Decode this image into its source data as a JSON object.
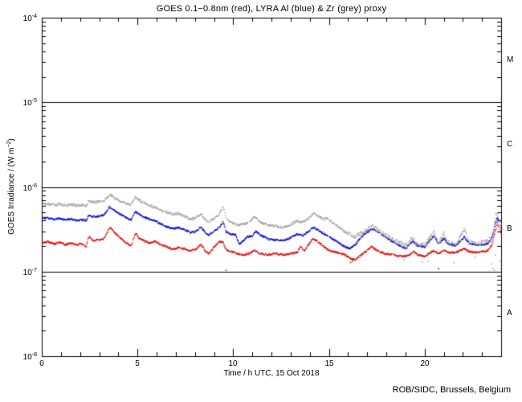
{
  "footer": "ROB/SIDC, Brussels, Belgium",
  "colors": {
    "red": "#e00000",
    "blue": "#0000dd",
    "grey": "#9e9e9e",
    "axis": "#000000",
    "background": "#ffffff"
  },
  "chart_data": {
    "type": "scatter",
    "title": "GOES 0.1−0.8nm (red), LYRA Al (blue) & Zr (grey) proxy",
    "xlabel": "Time / h UTC, 15 Oct 2018",
    "ylabel": "GOES Irradiance / (W m⁻²)",
    "ylabel_parts": {
      "pre": "GOES Irradiance / (W m",
      "exp": "−2",
      "post": ")"
    },
    "x_range": [
      0,
      24
    ],
    "x_minor_step": 1,
    "y_scale": "log",
    "y_range_log10": [
      -8,
      -4
    ],
    "y_tick_base": "10",
    "x_ticks": [
      {
        "t": 0,
        "label": "0"
      },
      {
        "t": 5,
        "label": "5"
      },
      {
        "t": 10,
        "label": "10"
      },
      {
        "t": 15,
        "label": "15"
      },
      {
        "t": 20,
        "label": "20"
      }
    ],
    "y_ticks": [
      {
        "v": 0.0001,
        "exp": "-4"
      },
      {
        "v": 1e-05,
        "exp": "-5"
      },
      {
        "v": 1e-06,
        "exp": "-6"
      },
      {
        "v": 1e-07,
        "exp": "-7"
      },
      {
        "v": 1e-08,
        "exp": "-8"
      }
    ],
    "class_boundaries": [
      1e-05,
      1e-06,
      1e-07
    ],
    "flare_classes": [
      {
        "label": "M",
        "center_exp": -4.5
      },
      {
        "label": "C",
        "center_exp": -5.5
      },
      {
        "label": "B",
        "center_exp": -6.5
      },
      {
        "label": "A",
        "center_exp": -7.5
      }
    ],
    "grid": false,
    "legend_position": "in-title",
    "value_scale": 1e-07,
    "value_unit": "W m-2 (points stored in units of 1e-7)",
    "series": [
      {
        "name": "GOES 0.1-0.8nm",
        "color_key": "red",
        "points": [
          [
            0,
            2.2
          ],
          [
            0.3,
            2.3
          ],
          [
            0.6,
            2.15
          ],
          [
            0.9,
            2.25
          ],
          [
            1.2,
            2.1
          ],
          [
            1.5,
            2.2
          ],
          [
            1.8,
            2.1
          ],
          [
            2.1,
            2.15
          ],
          [
            2.3,
            2.0
          ],
          [
            2.4,
            2.55
          ],
          [
            2.5,
            2.65
          ],
          [
            2.6,
            2.35
          ],
          [
            2.9,
            2.4
          ],
          [
            3.2,
            2.45
          ],
          [
            3.35,
            2.8
          ],
          [
            3.5,
            3.35
          ],
          [
            3.65,
            3.2
          ],
          [
            3.8,
            2.9
          ],
          [
            4.1,
            2.5
          ],
          [
            4.4,
            2.2
          ],
          [
            4.65,
            2.05
          ],
          [
            4.8,
            2.6
          ],
          [
            4.9,
            2.9
          ],
          [
            5.05,
            2.5
          ],
          [
            5.3,
            2.35
          ],
          [
            5.6,
            2.2
          ],
          [
            5.9,
            2.3
          ],
          [
            6.2,
            2.1
          ],
          [
            6.5,
            2.0
          ],
          [
            6.8,
            1.85
          ],
          [
            7.1,
            1.95
          ],
          [
            7.4,
            1.9
          ],
          [
            7.7,
            1.8
          ],
          [
            8.0,
            1.85
          ],
          [
            8.3,
            2.15
          ],
          [
            8.5,
            1.8
          ],
          [
            8.7,
            1.65
          ],
          [
            9.0,
            2.0
          ],
          [
            9.25,
            2.3
          ],
          [
            9.45,
            2.25
          ],
          [
            9.6,
            1.85
          ],
          [
            9.9,
            1.75
          ],
          [
            10.2,
            1.65
          ],
          [
            10.5,
            1.6
          ],
          [
            10.8,
            1.65
          ],
          [
            11.1,
            1.8
          ],
          [
            11.4,
            1.65
          ],
          [
            11.8,
            1.6
          ],
          [
            12.2,
            1.65
          ],
          [
            12.6,
            1.6
          ],
          [
            13.0,
            1.65
          ],
          [
            13.3,
            1.7
          ],
          [
            13.5,
            2.0
          ],
          [
            13.7,
            1.8
          ],
          [
            13.9,
            2.1
          ],
          [
            14.15,
            2.5
          ],
          [
            14.4,
            2.3
          ],
          [
            14.7,
            2.0
          ],
          [
            15.0,
            1.8
          ],
          [
            15.4,
            1.7
          ],
          [
            15.8,
            1.6
          ],
          [
            16.1,
            1.45
          ],
          [
            16.35,
            1.4
          ],
          [
            16.6,
            1.55
          ],
          [
            16.9,
            1.75
          ],
          [
            17.2,
            2.0
          ],
          [
            17.5,
            1.8
          ],
          [
            17.9,
            1.65
          ],
          [
            18.3,
            1.6
          ],
          [
            18.7,
            1.55
          ],
          [
            19.1,
            1.55
          ],
          [
            19.4,
            1.75
          ],
          [
            19.6,
            1.6
          ],
          [
            20.0,
            1.55
          ],
          [
            20.45,
            1.8
          ],
          [
            20.7,
            1.65
          ],
          [
            21.0,
            1.8
          ],
          [
            21.2,
            1.7
          ],
          [
            21.6,
            1.7
          ],
          [
            22.05,
            1.9
          ],
          [
            22.3,
            1.75
          ],
          [
            22.7,
            1.7
          ],
          [
            23.0,
            1.75
          ],
          [
            23.3,
            1.8
          ],
          [
            23.5,
            2.1
          ],
          [
            23.65,
            3.0
          ],
          [
            23.78,
            3.75
          ],
          [
            23.9,
            3.2
          ],
          [
            24,
            2.7
          ]
        ],
        "outliers": [
          [
            9.6,
            1.05
          ],
          [
            16.1,
            1.3
          ],
          [
            16.2,
            1.35
          ]
        ]
      },
      {
        "name": "LYRA Al proxy",
        "color_key": "blue",
        "points": [
          [
            0,
            4.3
          ],
          [
            0.3,
            4.35
          ],
          [
            0.6,
            4.2
          ],
          [
            0.9,
            4.3
          ],
          [
            1.2,
            4.15
          ],
          [
            1.5,
            4.25
          ],
          [
            1.8,
            4.1
          ],
          [
            2.1,
            4.15
          ],
          [
            2.3,
            4.05
          ],
          [
            2.4,
            4.6
          ],
          [
            2.6,
            4.5
          ],
          [
            2.9,
            4.55
          ],
          [
            3.2,
            4.7
          ],
          [
            3.35,
            5.1
          ],
          [
            3.5,
            5.9
          ],
          [
            3.65,
            5.7
          ],
          [
            3.8,
            5.3
          ],
          [
            4.1,
            4.8
          ],
          [
            4.4,
            4.35
          ],
          [
            4.65,
            4.15
          ],
          [
            4.85,
            5.2
          ],
          [
            5.05,
            4.85
          ],
          [
            5.3,
            4.5
          ],
          [
            5.6,
            4.2
          ],
          [
            5.9,
            4.0
          ],
          [
            6.2,
            3.7
          ],
          [
            6.5,
            3.45
          ],
          [
            6.8,
            3.25
          ],
          [
            7.1,
            3.35
          ],
          [
            7.4,
            3.2
          ],
          [
            7.7,
            2.95
          ],
          [
            8.0,
            3.0
          ],
          [
            8.3,
            3.4
          ],
          [
            8.5,
            2.95
          ],
          [
            8.7,
            2.75
          ],
          [
            9.0,
            3.05
          ],
          [
            9.25,
            3.35
          ],
          [
            9.45,
            3.95
          ],
          [
            9.6,
            3.0
          ],
          [
            9.9,
            2.8
          ],
          [
            10.1,
            2.75
          ],
          [
            10.3,
            2.15
          ],
          [
            10.45,
            2.3
          ],
          [
            10.7,
            2.6
          ],
          [
            11.0,
            2.7
          ],
          [
            11.15,
            3.05
          ],
          [
            11.4,
            2.75
          ],
          [
            11.8,
            2.45
          ],
          [
            12.2,
            2.4
          ],
          [
            12.6,
            2.35
          ],
          [
            13.0,
            2.55
          ],
          [
            13.3,
            2.8
          ],
          [
            13.6,
            2.7
          ],
          [
            13.9,
            3.0
          ],
          [
            14.15,
            3.4
          ],
          [
            14.4,
            3.15
          ],
          [
            14.7,
            2.85
          ],
          [
            15.0,
            2.6
          ],
          [
            15.4,
            2.3
          ],
          [
            15.8,
            2.0
          ],
          [
            16.1,
            1.9
          ],
          [
            16.35,
            2.1
          ],
          [
            16.6,
            2.5
          ],
          [
            16.9,
            2.9
          ],
          [
            17.25,
            3.25
          ],
          [
            17.6,
            2.95
          ],
          [
            17.9,
            2.6
          ],
          [
            18.2,
            2.35
          ],
          [
            18.6,
            2.1
          ],
          [
            19.0,
            1.9
          ],
          [
            19.35,
            2.35
          ],
          [
            19.6,
            2.05
          ],
          [
            20.0,
            2.0
          ],
          [
            20.45,
            2.7
          ],
          [
            20.7,
            2.15
          ],
          [
            21.0,
            2.5
          ],
          [
            21.2,
            2.15
          ],
          [
            21.6,
            2.05
          ],
          [
            22.05,
            2.6
          ],
          [
            22.3,
            2.2
          ],
          [
            22.7,
            2.1
          ],
          [
            23.0,
            2.1
          ],
          [
            23.3,
            2.2
          ],
          [
            23.5,
            2.6
          ],
          [
            23.65,
            3.6
          ],
          [
            23.78,
            4.35
          ],
          [
            23.9,
            3.8
          ],
          [
            24,
            3.2
          ]
        ],
        "outliers": [
          [
            20.7,
            1.1
          ]
        ]
      },
      {
        "name": "LYRA Zr proxy",
        "color_key": "grey",
        "points": [
          [
            0,
            6.3
          ],
          [
            0.3,
            6.4
          ],
          [
            0.6,
            6.2
          ],
          [
            0.9,
            6.35
          ],
          [
            1.2,
            6.1
          ],
          [
            1.5,
            6.3
          ],
          [
            1.8,
            6.1
          ],
          [
            2.1,
            6.2
          ],
          [
            2.3,
            6.0
          ],
          [
            2.4,
            6.8
          ],
          [
            2.6,
            6.65
          ],
          [
            2.9,
            6.75
          ],
          [
            3.2,
            6.9
          ],
          [
            3.35,
            7.4
          ],
          [
            3.5,
            8.2
          ],
          [
            3.65,
            8.0
          ],
          [
            3.8,
            7.5
          ],
          [
            4.1,
            6.9
          ],
          [
            4.4,
            6.4
          ],
          [
            4.65,
            6.2
          ],
          [
            4.85,
            7.8
          ],
          [
            5.05,
            7.1
          ],
          [
            5.3,
            6.6
          ],
          [
            5.6,
            6.1
          ],
          [
            5.9,
            5.8
          ],
          [
            6.2,
            5.4
          ],
          [
            6.5,
            5.1
          ],
          [
            6.8,
            4.8
          ],
          [
            7.1,
            4.9
          ],
          [
            7.4,
            4.6
          ],
          [
            7.7,
            4.25
          ],
          [
            8.0,
            4.3
          ],
          [
            8.3,
            4.9
          ],
          [
            8.5,
            4.2
          ],
          [
            8.7,
            3.85
          ],
          [
            9.0,
            4.4
          ],
          [
            9.25,
            4.75
          ],
          [
            9.45,
            6.0
          ],
          [
            9.6,
            4.3
          ],
          [
            9.9,
            3.85
          ],
          [
            10.2,
            3.6
          ],
          [
            10.5,
            3.7
          ],
          [
            10.8,
            3.85
          ],
          [
            11.1,
            4.6
          ],
          [
            11.4,
            3.9
          ],
          [
            11.8,
            3.6
          ],
          [
            12.2,
            3.5
          ],
          [
            12.6,
            3.35
          ],
          [
            13.0,
            3.65
          ],
          [
            13.3,
            4.0
          ],
          [
            13.6,
            3.9
          ],
          [
            13.9,
            4.3
          ],
          [
            14.2,
            5.0
          ],
          [
            14.5,
            4.5
          ],
          [
            14.75,
            4.2
          ],
          [
            14.9,
            4.35
          ],
          [
            15.2,
            3.8
          ],
          [
            15.5,
            3.4
          ],
          [
            15.8,
            3.0
          ],
          [
            16.1,
            2.75
          ],
          [
            16.35,
            2.65
          ],
          [
            16.6,
            2.85
          ],
          [
            16.9,
            3.1
          ],
          [
            17.25,
            3.45
          ],
          [
            17.6,
            3.1
          ],
          [
            17.9,
            2.75
          ],
          [
            18.2,
            2.5
          ],
          [
            18.6,
            2.25
          ],
          [
            19.0,
            2.05
          ],
          [
            19.35,
            2.5
          ],
          [
            19.6,
            2.15
          ],
          [
            20.0,
            2.1
          ],
          [
            20.45,
            3.0
          ],
          [
            20.7,
            2.2
          ],
          [
            21.0,
            2.85
          ],
          [
            21.2,
            2.25
          ],
          [
            21.6,
            2.1
          ],
          [
            22.05,
            3.2
          ],
          [
            22.3,
            2.3
          ],
          [
            22.7,
            2.2
          ],
          [
            23.0,
            2.25
          ],
          [
            23.4,
            2.35
          ],
          [
            23.55,
            3.0
          ],
          [
            23.7,
            4.5
          ],
          [
            23.78,
            5.0
          ],
          [
            23.9,
            4.2
          ],
          [
            24,
            3.5
          ]
        ],
        "outliers": [
          [
            18.9,
            1.4
          ],
          [
            19.85,
            1.32
          ],
          [
            20.15,
            1.35
          ],
          [
            21.5,
            1.3
          ],
          [
            22.6,
            1.5
          ],
          [
            23.45,
            1.25
          ],
          [
            23.55,
            1.1
          ],
          [
            23.62,
            1.05
          ],
          [
            23.68,
            1.6
          ],
          [
            23.9,
            1.35
          ],
          [
            23.95,
            1.1
          ]
        ]
      }
    ]
  }
}
